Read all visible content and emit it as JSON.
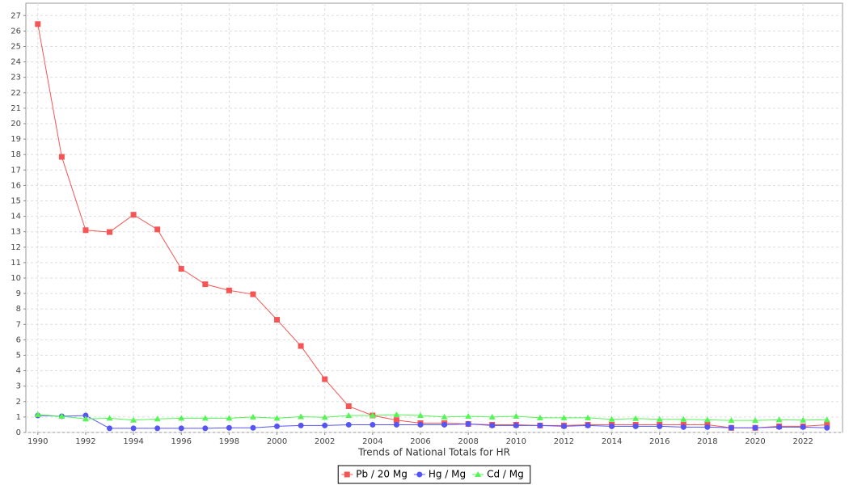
{
  "chart_data": {
    "type": "line",
    "x_label": "Trends of National Totals for HR",
    "x": [
      1990,
      1991,
      1992,
      1993,
      1994,
      1995,
      1996,
      1997,
      1998,
      1999,
      2000,
      2001,
      2002,
      2003,
      2004,
      2005,
      2006,
      2007,
      2008,
      2009,
      2010,
      2011,
      2012,
      2013,
      2014,
      2015,
      2016,
      2017,
      2018,
      2019,
      2020,
      2021,
      2022,
      2023
    ],
    "series": [
      {
        "name": "Pb / 20 Mg",
        "color": "#f55555",
        "marker": "square",
        "values": [
          26.45,
          17.85,
          13.1,
          12.98,
          14.1,
          13.15,
          10.6,
          9.6,
          9.2,
          8.95,
          7.3,
          5.6,
          3.45,
          1.7,
          1.1,
          0.8,
          0.6,
          0.6,
          0.55,
          0.5,
          0.5,
          0.45,
          0.45,
          0.5,
          0.5,
          0.5,
          0.5,
          0.5,
          0.5,
          0.3,
          0.3,
          0.4,
          0.4,
          0.5
        ]
      },
      {
        "name": "Hg / Mg",
        "color": "#5555f5",
        "marker": "circle",
        "values": [
          1.1,
          1.05,
          1.1,
          0.27,
          0.27,
          0.27,
          0.27,
          0.27,
          0.3,
          0.3,
          0.4,
          0.45,
          0.45,
          0.5,
          0.5,
          0.5,
          0.5,
          0.5,
          0.55,
          0.45,
          0.45,
          0.45,
          0.4,
          0.45,
          0.4,
          0.4,
          0.4,
          0.35,
          0.35,
          0.3,
          0.3,
          0.35,
          0.35,
          0.3
        ]
      },
      {
        "name": "Cd / Mg",
        "color": "#55f555",
        "marker": "triangle",
        "values": [
          1.15,
          1.05,
          0.88,
          0.92,
          0.8,
          0.88,
          0.92,
          0.92,
          0.92,
          1.0,
          0.92,
          1.02,
          0.98,
          1.1,
          1.1,
          1.15,
          1.1,
          1.0,
          1.05,
          1.0,
          1.05,
          0.95,
          0.95,
          0.95,
          0.85,
          0.9,
          0.85,
          0.85,
          0.82,
          0.78,
          0.78,
          0.82,
          0.8,
          0.82
        ]
      }
    ],
    "xlim": [
      1989.5,
      2023.65
    ],
    "xticks": [
      1990,
      1992,
      1994,
      1996,
      1998,
      2000,
      2002,
      2004,
      2006,
      2008,
      2010,
      2012,
      2014,
      2016,
      2018,
      2020,
      2022
    ],
    "ylim": [
      0,
      27.8
    ],
    "yticks": [
      0,
      1,
      2,
      3,
      4,
      5,
      6,
      7,
      8,
      9,
      10,
      11,
      12,
      13,
      14,
      15,
      16,
      17,
      18,
      19,
      20,
      21,
      22,
      23,
      24,
      25,
      26,
      27
    ],
    "grid": true,
    "legend": "bottom"
  }
}
